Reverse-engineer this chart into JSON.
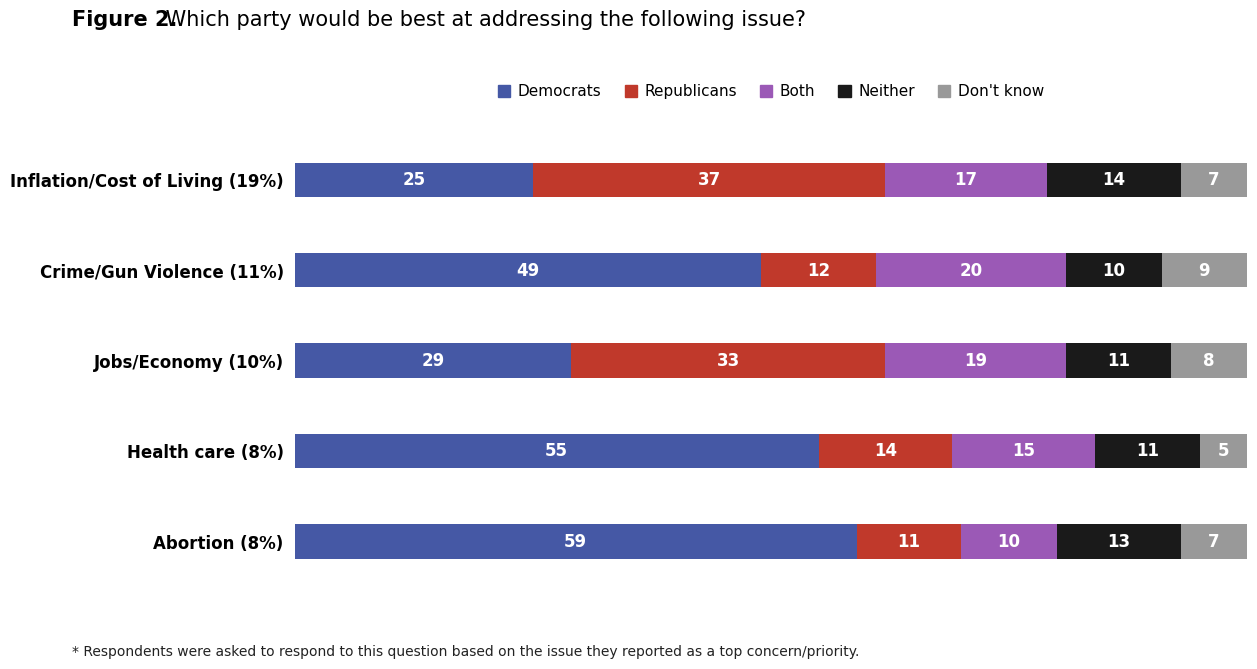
{
  "title_bold": "Figure 2.",
  "title_regular": " Which party would be best at addressing the following issue?",
  "footnote": "* Respondents were asked to respond to this question based on the issue they reported as a top concern/priority.",
  "categories": [
    "Inflation/Cost of Living (19%)",
    "Crime/Gun Violence (11%)",
    "Jobs/Economy (10%)",
    "Health care (8%)",
    "Abortion (8%)"
  ],
  "series": [
    "Democrats",
    "Republicans",
    "Both",
    "Neither",
    "Don't know"
  ],
  "colors": [
    "#4558a5",
    "#c0392b",
    "#9b59b6",
    "#1a1a1a",
    "#999999"
  ],
  "data": [
    [
      25,
      37,
      17,
      14,
      7
    ],
    [
      49,
      12,
      20,
      10,
      9
    ],
    [
      29,
      33,
      19,
      11,
      8
    ],
    [
      55,
      14,
      15,
      11,
      5
    ],
    [
      59,
      11,
      10,
      13,
      7
    ]
  ],
  "background_color": "#ffffff",
  "bar_height": 0.38,
  "text_color_white": "#ffffff"
}
